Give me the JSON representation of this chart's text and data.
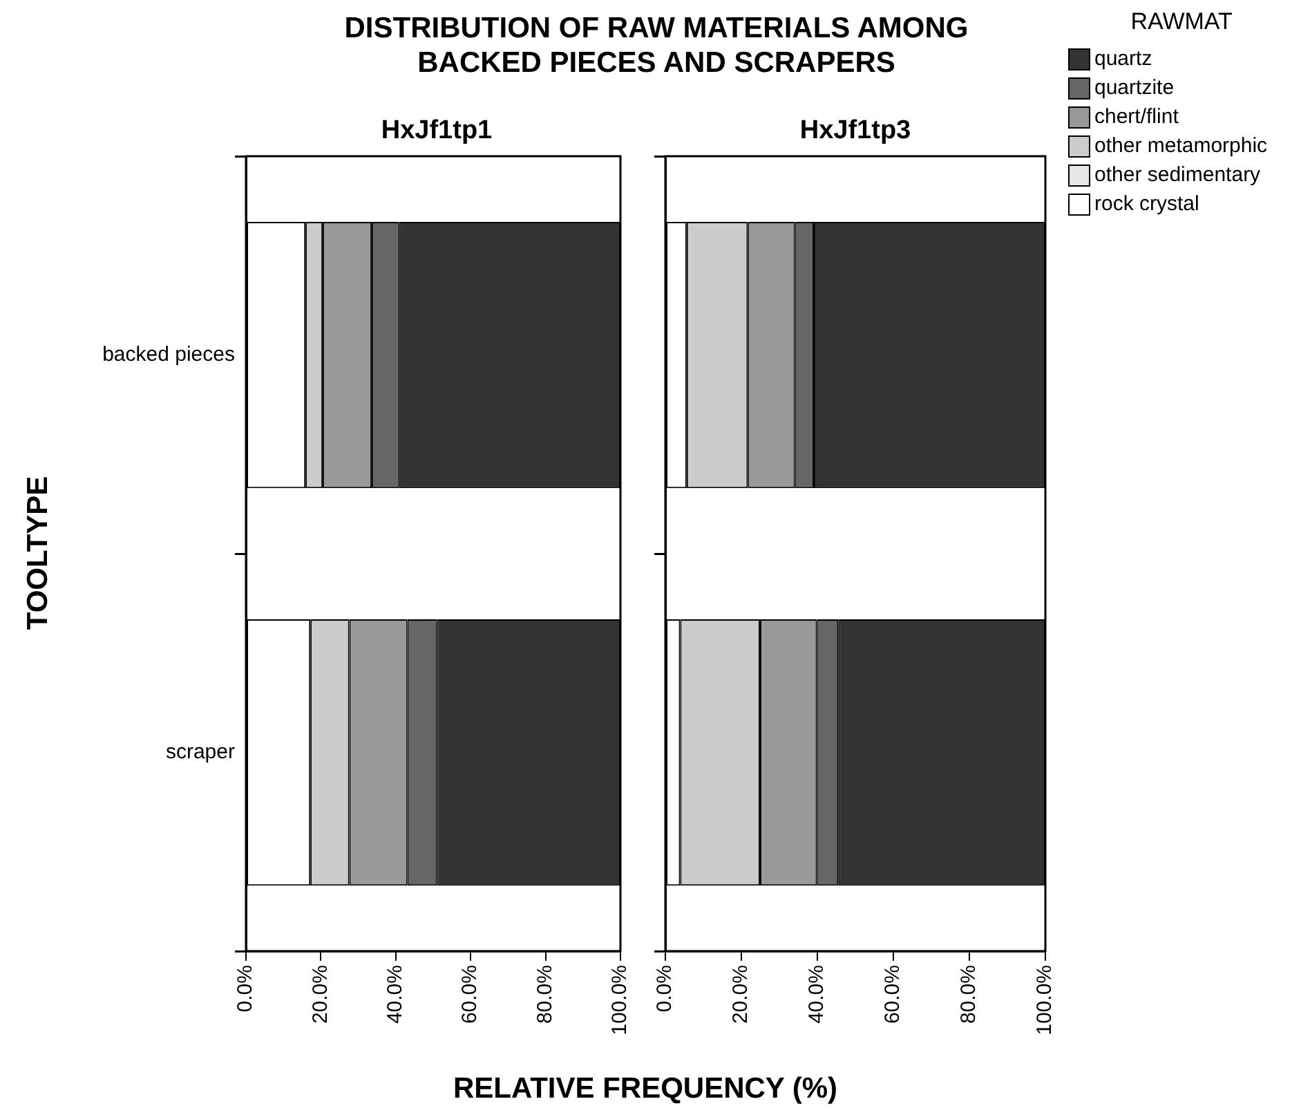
{
  "chart_data": [
    {
      "type": "bar",
      "orientation": "horizontal",
      "stacked": true,
      "title": "DISTRIBUTION OF RAW MATERIALS AMONG BACKED PIECES AND SCRAPERS",
      "subtitle": "HxJf1tp1",
      "xlabel": "RELATIVE FREQUENCY (%)",
      "ylabel": "TOOLTYPE",
      "categories": [
        "backed pieces",
        "scraper"
      ],
      "xlim": [
        0,
        100
      ],
      "xticks": [
        {
          "value": 0,
          "label": "0.0%"
        },
        {
          "value": 20,
          "label": "20.0%"
        },
        {
          "value": 40,
          "label": "40.0%"
        },
        {
          "value": 60,
          "label": "60.0%"
        },
        {
          "value": 80,
          "label": "80.0%"
        },
        {
          "value": 100,
          "label": "100.0%"
        }
      ],
      "grid": false,
      "series": [
        {
          "color": "#ffffff",
          "values": [
            15.9,
            17.2
          ]
        },
        {
          "color": "#e6e6e6",
          "values": [
            0,
            0
          ]
        },
        {
          "color": "#cccccc",
          "values": [
            4.6,
            10.4
          ]
        },
        {
          "color": "#999999",
          "values": [
            13.1,
            15.5
          ]
        },
        {
          "color": "#666666",
          "values": [
            7.3,
            7.9
          ]
        },
        {
          "color": "#333333",
          "values": [
            59.1,
            49.0
          ]
        }
      ]
    },
    {
      "type": "bar",
      "orientation": "horizontal",
      "stacked": true,
      "subtitle": "HxJf1tp3",
      "legend_title": "RAWMAT",
      "legend": "top right",
      "tick_labels": "x",
      "categories": [
        null,
        null
      ],
      "xlim": [
        0,
        100
      ],
      "xticks": [
        {
          "value": 0,
          "label": "0.0%"
        },
        {
          "value": 20,
          "label": "20.0%"
        },
        {
          "value": 40,
          "label": "40.0%"
        },
        {
          "value": 60,
          "label": "60.0%"
        },
        {
          "value": 80,
          "label": "80.0%"
        },
        {
          "value": 100,
          "label": "100.0%"
        }
      ],
      "grid": false,
      "series": [
        {
          "name": "rock crystal",
          "color": "#ffffff",
          "values": [
            5.6,
            3.9
          ]
        },
        {
          "name": "other sedimentary",
          "color": "#e6e6e6",
          "values": [
            0,
            0
          ]
        },
        {
          "name": "other metamorphic",
          "color": "#cccccc",
          "values": [
            16.1,
            21.0
          ]
        },
        {
          "name": "chert/flint",
          "color": "#999999",
          "values": [
            12.4,
            15.0
          ]
        },
        {
          "name": "quartzite",
          "color": "#666666",
          "values": [
            5.0,
            5.6
          ]
        },
        {
          "name": "quartz",
          "color": "#333333",
          "values": [
            60.9,
            54.5
          ]
        }
      ]
    }
  ]
}
